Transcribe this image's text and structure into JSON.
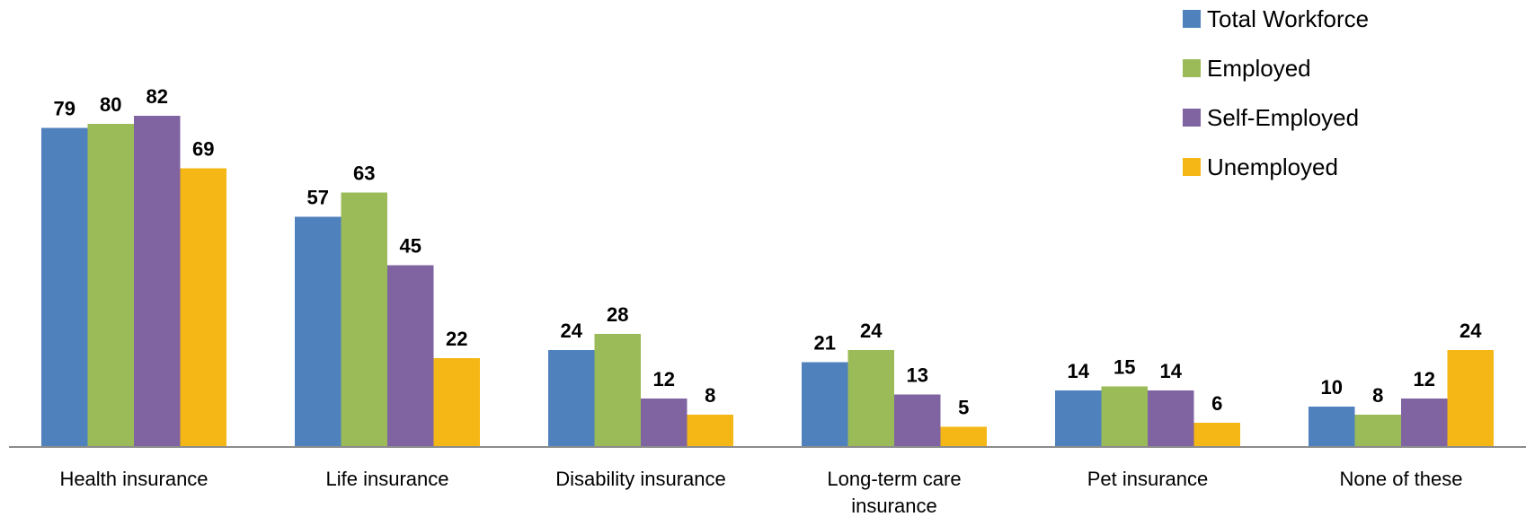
{
  "chart_data": {
    "type": "bar",
    "categories": [
      [
        "Health insurance"
      ],
      [
        "Life insurance"
      ],
      [
        "Disability insurance"
      ],
      [
        "Long-term care",
        "insurance"
      ],
      [
        "Pet insurance"
      ],
      [
        "None of these"
      ]
    ],
    "series": [
      {
        "name": "Total Workforce",
        "color": "#4F81BD",
        "values": [
          79,
          57,
          24,
          21,
          14,
          10
        ]
      },
      {
        "name": "Employed",
        "color": "#9BBB59",
        "values": [
          80,
          63,
          28,
          24,
          15,
          8
        ]
      },
      {
        "name": "Self-Employed",
        "color": "#8064A2",
        "values": [
          82,
          45,
          12,
          13,
          14,
          12
        ]
      },
      {
        "name": "Unemployed",
        "color": "#F5B715",
        "values": [
          69,
          22,
          8,
          5,
          6,
          24
        ]
      }
    ],
    "title": "",
    "xlabel": "",
    "ylabel": "",
    "ylim": [
      0,
      100
    ],
    "grid": false,
    "legend_position": "top-right",
    "data_labels": true
  }
}
